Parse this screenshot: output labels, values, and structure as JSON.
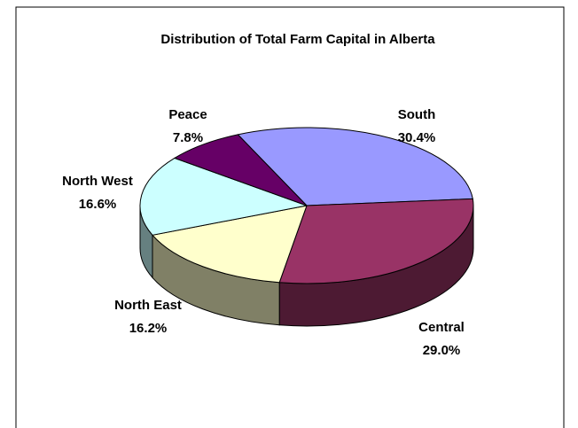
{
  "chart_data": {
    "type": "pie3d",
    "title": "Distribution of Total Farm Capital in Alberta",
    "categories": [
      "South",
      "Central",
      "North East",
      "North West",
      "Peace"
    ],
    "values": [
      30.4,
      29.0,
      16.2,
      16.6,
      7.8
    ],
    "value_labels": [
      "30.4%",
      "29.0%",
      "16.2%",
      "16.6%",
      "7.8%"
    ],
    "colors": [
      "#9999ff",
      "#993366",
      "#ffffcc",
      "#ccffff",
      "#660066"
    ]
  }
}
